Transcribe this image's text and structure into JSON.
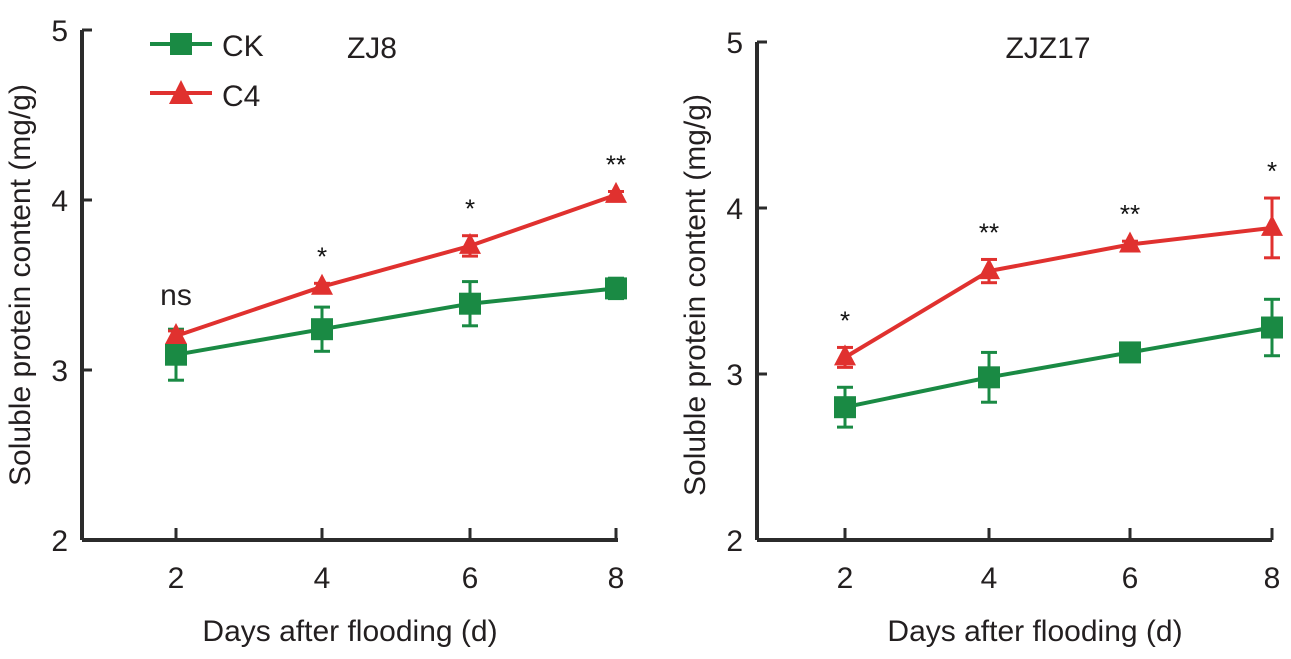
{
  "chart_data": [
    {
      "type": "line",
      "title": "ZJ8",
      "xlabel": "Days after flooding (d)",
      "ylabel": "Soluble protein content (mg/g)",
      "x": [
        2,
        4,
        6,
        8
      ],
      "xticks": [
        "2",
        "4",
        "6",
        "8"
      ],
      "yticks": [
        "2",
        "3",
        "4",
        "5"
      ],
      "ylim": [
        2,
        5
      ],
      "xlim": [
        0.7,
        8.05
      ],
      "grid": false,
      "legend_position": "top-left",
      "series": [
        {
          "name": "CK",
          "marker": "square",
          "color": "#1a8a44",
          "values": [
            3.09,
            3.24,
            3.39,
            3.48
          ],
          "errors": [
            0.15,
            0.13,
            0.13,
            0.06
          ]
        },
        {
          "name": "C4",
          "marker": "triangle",
          "color": "#e0312f",
          "values": [
            3.2,
            3.49,
            3.73,
            4.03
          ],
          "errors": [
            0.03,
            0.02,
            0.06,
            0.02
          ]
        }
      ],
      "annotations": [
        "ns",
        "*",
        "*",
        "**"
      ]
    },
    {
      "type": "line",
      "title": "ZJZ17",
      "xlabel": "Days after flooding (d)",
      "ylabel": "Soluble protein content (mg/g)",
      "x": [
        2,
        4,
        6,
        8
      ],
      "xticks": [
        "2",
        "4",
        "6",
        "8"
      ],
      "yticks": [
        "2",
        "3",
        "4",
        "5"
      ],
      "ylim": [
        2,
        5
      ],
      "xlim": [
        0.9,
        8
      ],
      "grid": false,
      "series": [
        {
          "name": "CK",
          "marker": "square",
          "color": "#1a8a44",
          "values": [
            2.8,
            2.98,
            3.13,
            3.28
          ],
          "errors": [
            0.12,
            0.15,
            0.03,
            0.17
          ]
        },
        {
          "name": "C4",
          "marker": "triangle",
          "color": "#e0312f",
          "values": [
            3.1,
            3.62,
            3.78,
            3.88
          ],
          "errors": [
            0.06,
            0.07,
            0.02,
            0.18
          ]
        }
      ],
      "annotations": [
        "*",
        "**",
        "**",
        "*"
      ]
    }
  ]
}
